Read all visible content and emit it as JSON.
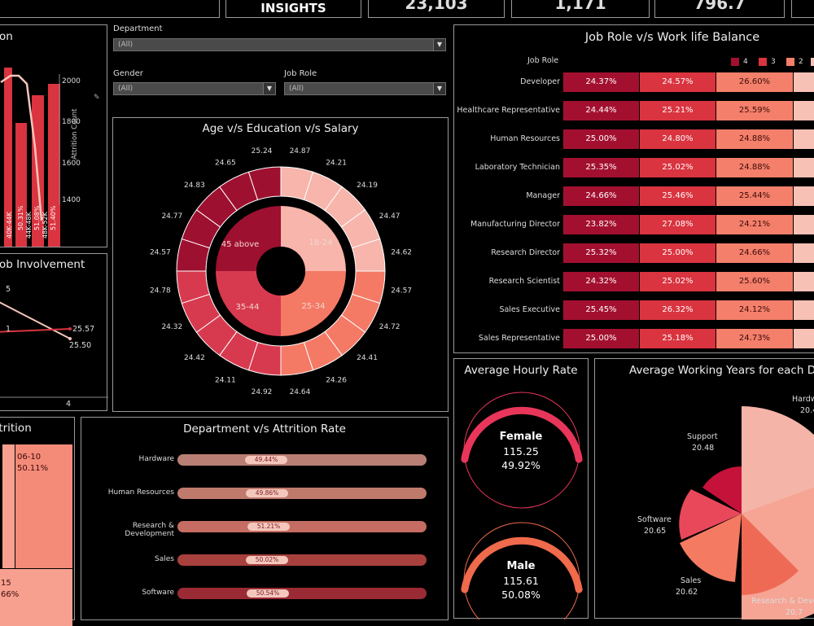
{
  "kpis": [
    {
      "label": "INSIGHTS",
      "value": ""
    },
    {
      "label": "",
      "value": "23,103"
    },
    {
      "label": "",
      "value": "1,171"
    },
    {
      "label": "",
      "value": "796.7"
    }
  ],
  "filters": {
    "department_label": "Department",
    "department_value": "(All)",
    "gender_label": "Gender",
    "gender_value": "(All)",
    "job_role_label": "Job Role",
    "job_role_value": "(All)"
  },
  "attrition_panel": {
    "title": "on",
    "axis_label": "Attrition Count",
    "ticks": [
      "2000",
      "1800",
      "1600",
      "1400"
    ],
    "bars": [
      {
        "category": "40K-44K",
        "label": "50.31%"
      },
      {
        "category": "44K-48K",
        "label": "51.08%"
      },
      {
        "category": "48K-52K",
        "label": "51.40%"
      }
    ]
  },
  "job_involvement": {
    "title": "ob Involvement",
    "labels": [
      "5",
      "1",
      "25.57",
      "25.50"
    ],
    "axis_tick": "4"
  },
  "age_edu_salary": {
    "title": "Age v/s Education v/s Salary",
    "inner_labels": [
      "45 above",
      "18-24",
      "35-44",
      "25-34"
    ],
    "outer_values": [
      "24.87",
      "24.21",
      "24.19",
      "24.47",
      "24.62",
      "24.57",
      "24.72",
      "24.41",
      "24.26",
      "24.64",
      "24.92",
      "24.11",
      "24.42",
      "24.32",
      "24.78",
      "24.57",
      "24.77",
      "24.83",
      "24.65",
      "25.24"
    ],
    "colors": {
      "c1": "#9e1030",
      "c2": "#d73a4f",
      "c3": "#f47a66",
      "c4": "#f7b5ab"
    }
  },
  "job_role_wlb": {
    "title": "Job Role v/s Work life Balance",
    "row_header": "Job Role",
    "legend": [
      {
        "label": "4",
        "color": "#a3102f"
      },
      {
        "label": "3",
        "color": "#d9343f"
      },
      {
        "label": "2",
        "color": "#f47f6a"
      }
    ],
    "rows": [
      {
        "role": "Developer",
        "v4": "24.37%",
        "v3": "24.57%",
        "v2": "26.60%"
      },
      {
        "role": "Healthcare Representative",
        "v4": "24.44%",
        "v3": "25.21%",
        "v2": "25.59%"
      },
      {
        "role": "Human Resources",
        "v4": "25.00%",
        "v3": "24.80%",
        "v2": "24.88%"
      },
      {
        "role": "Laboratory Technician",
        "v4": "25.35%",
        "v3": "25.02%",
        "v2": "24.88%"
      },
      {
        "role": "Manager",
        "v4": "24.66%",
        "v3": "25.46%",
        "v2": "25.44%"
      },
      {
        "role": "Manufacturing Director",
        "v4": "23.82%",
        "v3": "27.08%",
        "v2": "24.21%"
      },
      {
        "role": "Research Director",
        "v4": "25.32%",
        "v3": "25.00%",
        "v2": "24.66%"
      },
      {
        "role": "Research Scientist",
        "v4": "24.32%",
        "v3": "25.02%",
        "v2": "25.60%"
      },
      {
        "role": "Sales Executive",
        "v4": "25.45%",
        "v3": "26.32%",
        "v2": "24.12%"
      },
      {
        "role": "Sales Representative",
        "v4": "25.00%",
        "v3": "25.18%",
        "v2": "24.73%"
      }
    ]
  },
  "treemap": {
    "title": "ttrition",
    "cells": [
      {
        "line1": "06-10",
        "line2": "50.11%"
      },
      {
        "line1": "15",
        "line2": "66%"
      }
    ]
  },
  "dept_attrition": {
    "title": "Department v/s Attrition Rate",
    "rows": [
      {
        "name": "Hardware",
        "rate": "49.44%",
        "frac": 0.4944,
        "color": "#b97f74"
      },
      {
        "name": "Human Resources",
        "rate": "49.86%",
        "frac": 0.4986,
        "color": "#bf7a6c"
      },
      {
        "name": "Research & Development",
        "rate": "51.21%",
        "frac": 0.5121,
        "color": "#c56d62"
      },
      {
        "name": "Sales",
        "rate": "50.02%",
        "frac": 0.5002,
        "color": "#a8403d"
      },
      {
        "name": "Software",
        "rate": "50.54%",
        "frac": 0.5054,
        "color": "#9a2a34"
      }
    ]
  },
  "hourly_rate": {
    "title": "Average Hourly Rate",
    "female": {
      "label": "Female",
      "value": "115.25",
      "pct": "49.92%",
      "color": "#e8365a"
    },
    "male": {
      "label": "Male",
      "value": "115.61",
      "pct": "50.08%",
      "color": "#f06a4c"
    }
  },
  "working_years": {
    "title": "Average Working Years for each Depa",
    "labels": [
      {
        "name": "Hardw",
        "value": "20.4"
      },
      {
        "name": "Support",
        "value": "20.48"
      },
      {
        "name": "Software",
        "value": "20.65"
      },
      {
        "name": "Sales",
        "value": "20.62"
      },
      {
        "name": "Research & Deve",
        "value": "20.7"
      }
    ]
  }
}
